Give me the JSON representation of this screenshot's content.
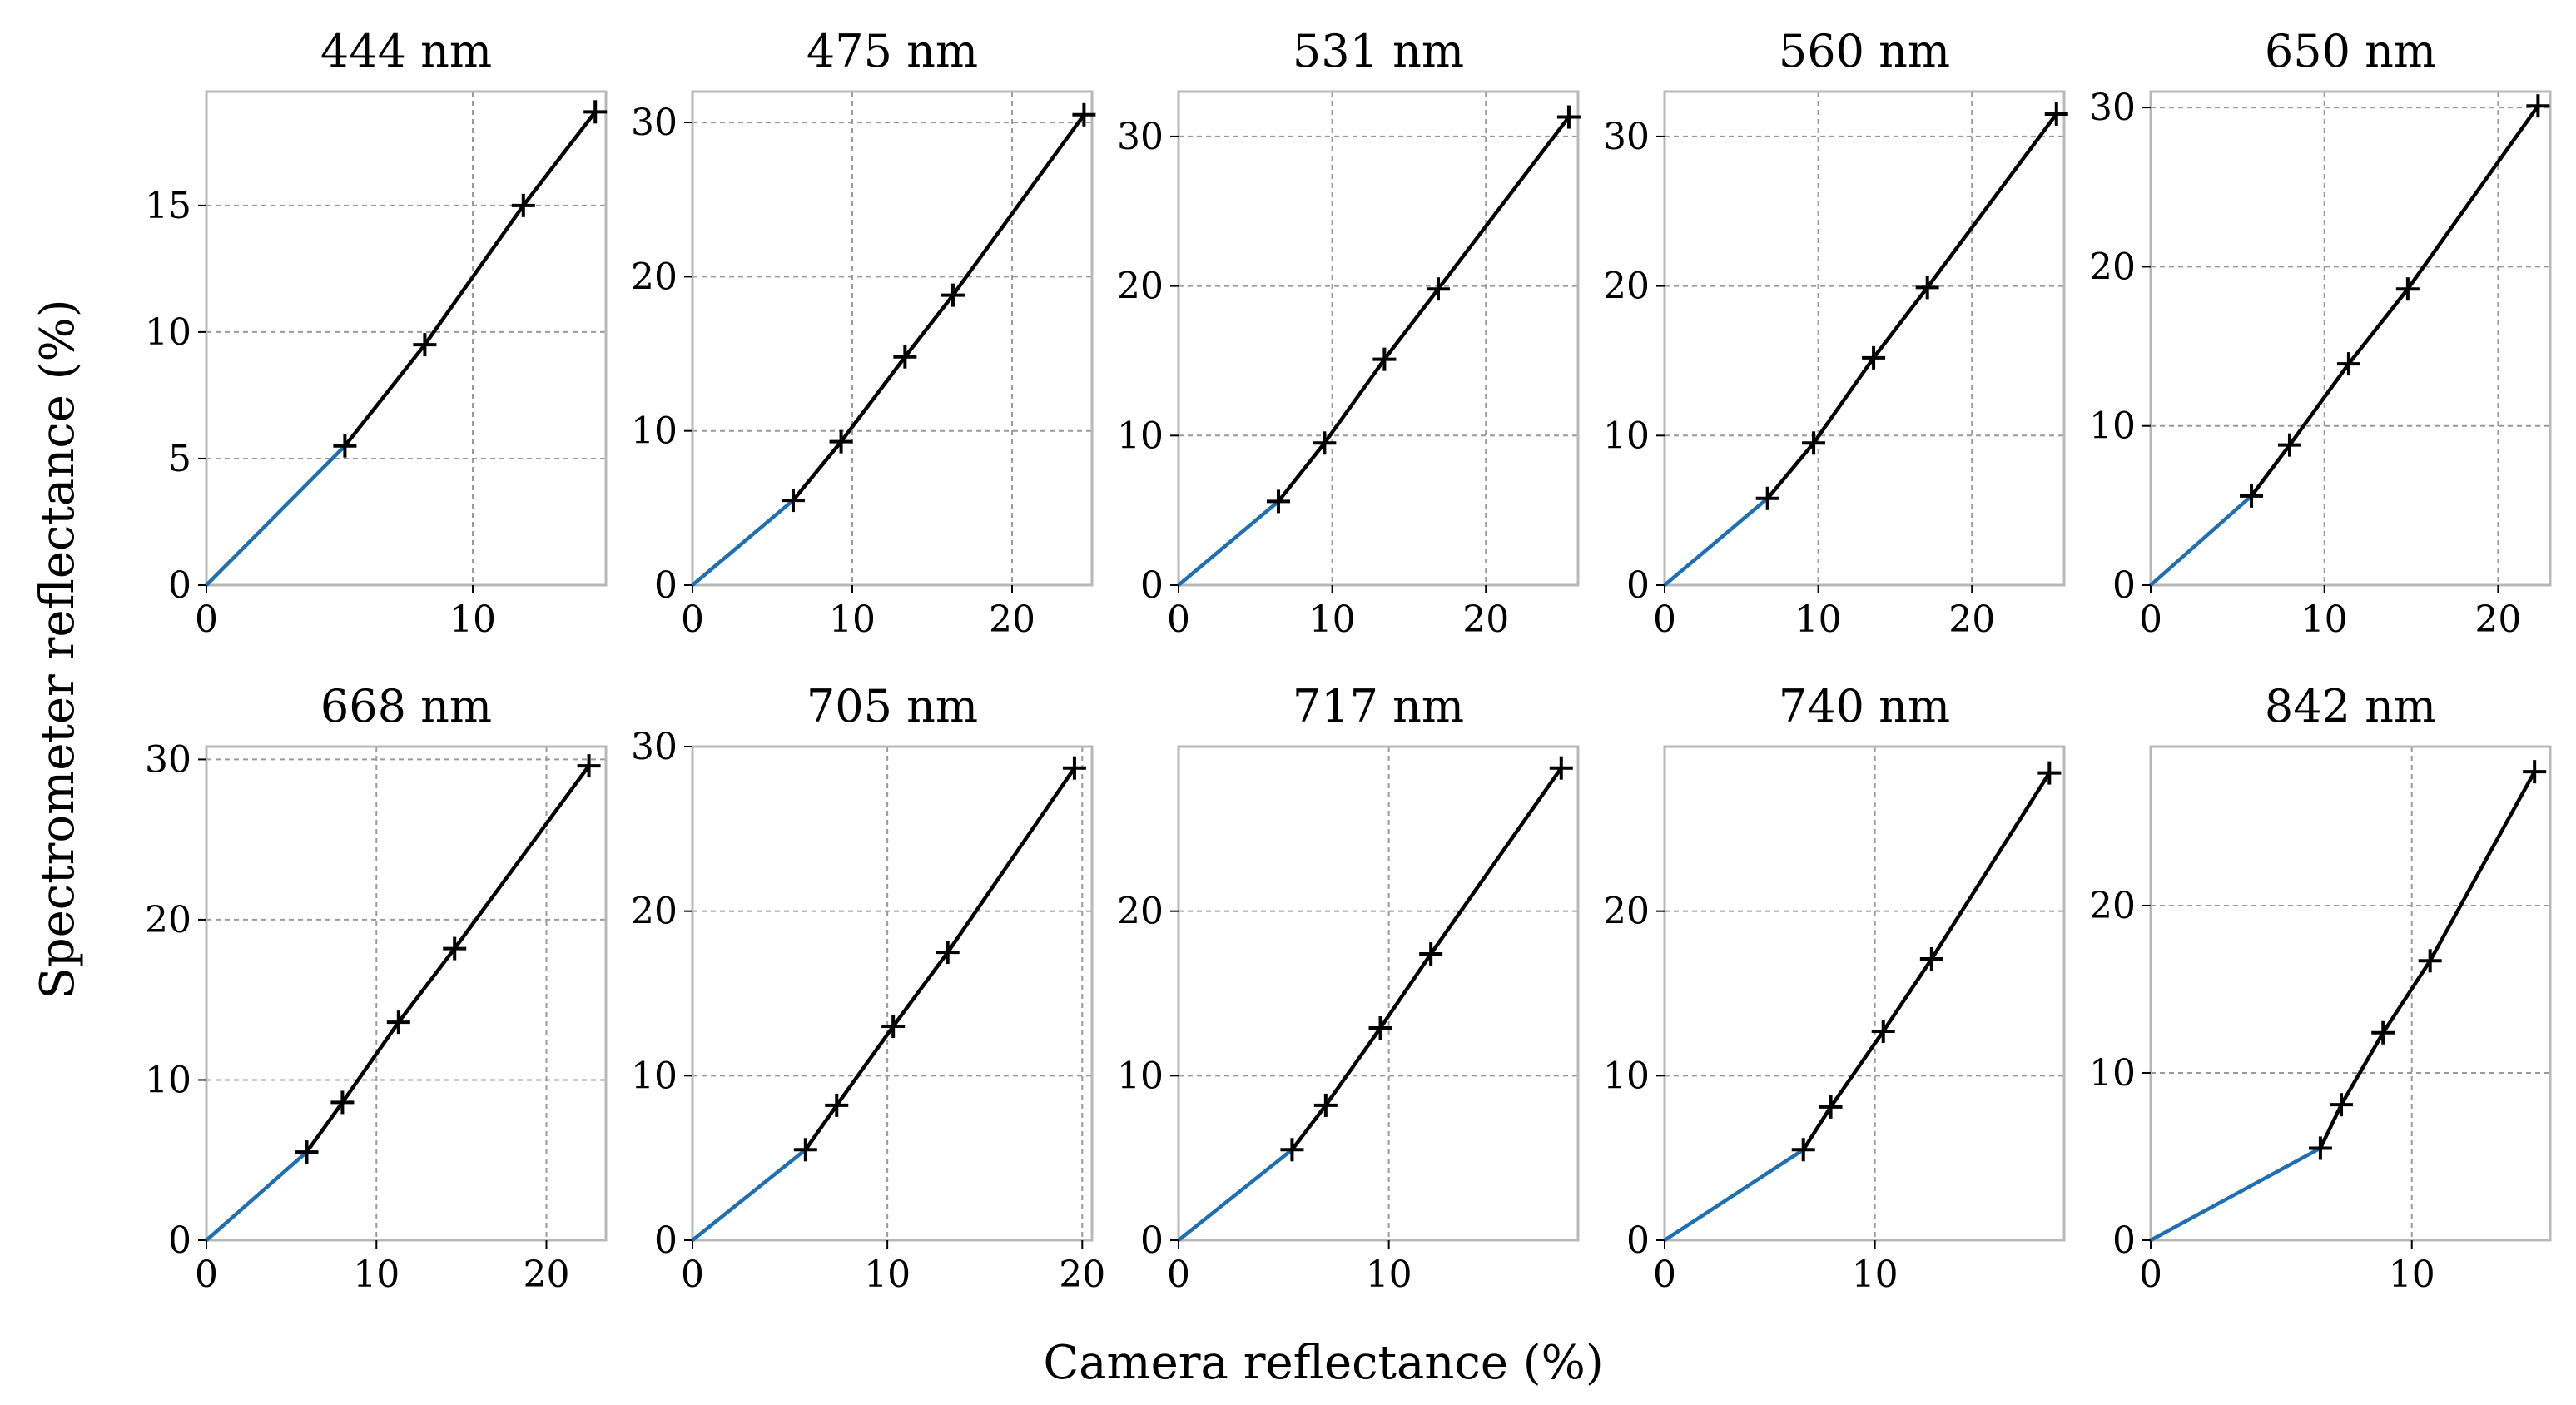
{
  "figure": {
    "xlabel": "Camera reflectance (%)",
    "ylabel": "Spectrometer reflectance (%)"
  },
  "colors": {
    "origin_segment": "#1f6fb5",
    "fit_line": "#000000",
    "marker": "#000000",
    "grid": "#9a9a9a",
    "frame": "#b8b8b8"
  },
  "chart_data": [
    {
      "type": "line",
      "title": "444 nm",
      "xlim": [
        0,
        15
      ],
      "ylim": [
        0,
        19.5
      ],
      "xticks": [
        0,
        10
      ],
      "yticks": [
        0,
        5,
        10,
        15
      ],
      "origin_segment": {
        "x": [
          0,
          5.2
        ],
        "y": [
          0,
          5.5
        ]
      },
      "points": {
        "x": [
          5.2,
          8.2,
          11.9,
          14.6
        ],
        "y": [
          5.5,
          9.5,
          15.0,
          18.7
        ]
      }
    },
    {
      "type": "line",
      "title": "475 nm",
      "xlim": [
        0,
        25
      ],
      "ylim": [
        0,
        32
      ],
      "xticks": [
        0,
        10,
        20
      ],
      "yticks": [
        0,
        10,
        20,
        30
      ],
      "origin_segment": {
        "x": [
          0,
          6.3
        ],
        "y": [
          0,
          5.5
        ]
      },
      "points": {
        "x": [
          6.3,
          9.3,
          13.3,
          16.3,
          24.5
        ],
        "y": [
          5.5,
          9.3,
          14.8,
          18.8,
          30.5
        ]
      }
    },
    {
      "type": "line",
      "title": "531 nm",
      "xlim": [
        0,
        26
      ],
      "ylim": [
        0,
        33
      ],
      "xticks": [
        0,
        10,
        20
      ],
      "yticks": [
        0,
        10,
        20,
        30
      ],
      "origin_segment": {
        "x": [
          0,
          6.5
        ],
        "y": [
          0,
          5.6
        ]
      },
      "points": {
        "x": [
          6.5,
          9.5,
          13.4,
          16.9,
          25.4
        ],
        "y": [
          5.6,
          9.5,
          15.1,
          19.8,
          31.3
        ]
      }
    },
    {
      "type": "line",
      "title": "560 nm",
      "xlim": [
        0,
        26
      ],
      "ylim": [
        0,
        33
      ],
      "xticks": [
        0,
        10,
        20
      ],
      "yticks": [
        0,
        10,
        20,
        30
      ],
      "origin_segment": {
        "x": [
          0,
          6.7
        ],
        "y": [
          0,
          5.8
        ]
      },
      "points": {
        "x": [
          6.7,
          9.7,
          13.6,
          17.1,
          25.5
        ],
        "y": [
          5.8,
          9.5,
          15.2,
          19.9,
          31.5
        ]
      }
    },
    {
      "type": "line",
      "title": "650 nm",
      "xlim": [
        0,
        23
      ],
      "ylim": [
        0,
        31
      ],
      "xticks": [
        0,
        10,
        20
      ],
      "yticks": [
        0,
        10,
        20,
        30
      ],
      "origin_segment": {
        "x": [
          0,
          5.8
        ],
        "y": [
          0,
          5.6
        ]
      },
      "points": {
        "x": [
          5.8,
          8.0,
          11.4,
          14.8,
          22.3
        ],
        "y": [
          5.6,
          8.8,
          13.9,
          18.6,
          30.1
        ]
      }
    },
    {
      "type": "line",
      "title": "668 nm",
      "xlim": [
        0,
        23.5
      ],
      "ylim": [
        0,
        30.8
      ],
      "xticks": [
        0,
        10,
        20
      ],
      "yticks": [
        0,
        10,
        20,
        30
      ],
      "origin_segment": {
        "x": [
          0,
          5.9
        ],
        "y": [
          0,
          5.5
        ]
      },
      "points": {
        "x": [
          5.9,
          8.0,
          11.3,
          14.6,
          22.5
        ],
        "y": [
          5.5,
          8.6,
          13.6,
          18.2,
          29.6
        ]
      }
    },
    {
      "type": "line",
      "title": "705 nm",
      "xlim": [
        0,
        20.5
      ],
      "ylim": [
        0,
        30
      ],
      "xticks": [
        0,
        10,
        20
      ],
      "yticks": [
        0,
        10,
        20,
        30
      ],
      "origin_segment": {
        "x": [
          0,
          5.8
        ],
        "y": [
          0,
          5.5
        ]
      },
      "points": {
        "x": [
          5.8,
          7.4,
          10.3,
          13.1,
          19.6
        ],
        "y": [
          5.5,
          8.2,
          13.0,
          17.5,
          28.7
        ]
      }
    },
    {
      "type": "line",
      "title": "717 nm",
      "xlim": [
        0,
        19
      ],
      "ylim": [
        0,
        30
      ],
      "xticks": [
        0,
        10
      ],
      "yticks": [
        0,
        10,
        20
      ],
      "origin_segment": {
        "x": [
          0,
          5.4
        ],
        "y": [
          0,
          5.5
        ]
      },
      "points": {
        "x": [
          5.4,
          7.0,
          9.6,
          12.0,
          18.2
        ],
        "y": [
          5.5,
          8.2,
          12.9,
          17.4,
          28.7
        ]
      }
    },
    {
      "type": "line",
      "title": "740 nm",
      "xlim": [
        0,
        19
      ],
      "ylim": [
        0,
        30
      ],
      "xticks": [
        0,
        10
      ],
      "yticks": [
        0,
        10,
        20
      ],
      "origin_segment": {
        "x": [
          0,
          6.6
        ],
        "y": [
          0,
          5.5
        ]
      },
      "points": {
        "x": [
          6.6,
          7.9,
          10.4,
          12.7,
          18.3
        ],
        "y": [
          5.5,
          8.1,
          12.7,
          17.1,
          28.4
        ]
      }
    },
    {
      "type": "line",
      "title": "842 nm",
      "xlim": [
        0,
        15.3
      ],
      "ylim": [
        0,
        29.5
      ],
      "xticks": [
        0,
        10
      ],
      "yticks": [
        0,
        10,
        20
      ],
      "origin_segment": {
        "x": [
          0,
          6.5
        ],
        "y": [
          0,
          5.5
        ]
      },
      "points": {
        "x": [
          6.5,
          7.3,
          8.9,
          10.7,
          14.7
        ],
        "y": [
          5.5,
          8.1,
          12.4,
          16.7,
          28.0
        ]
      }
    }
  ]
}
